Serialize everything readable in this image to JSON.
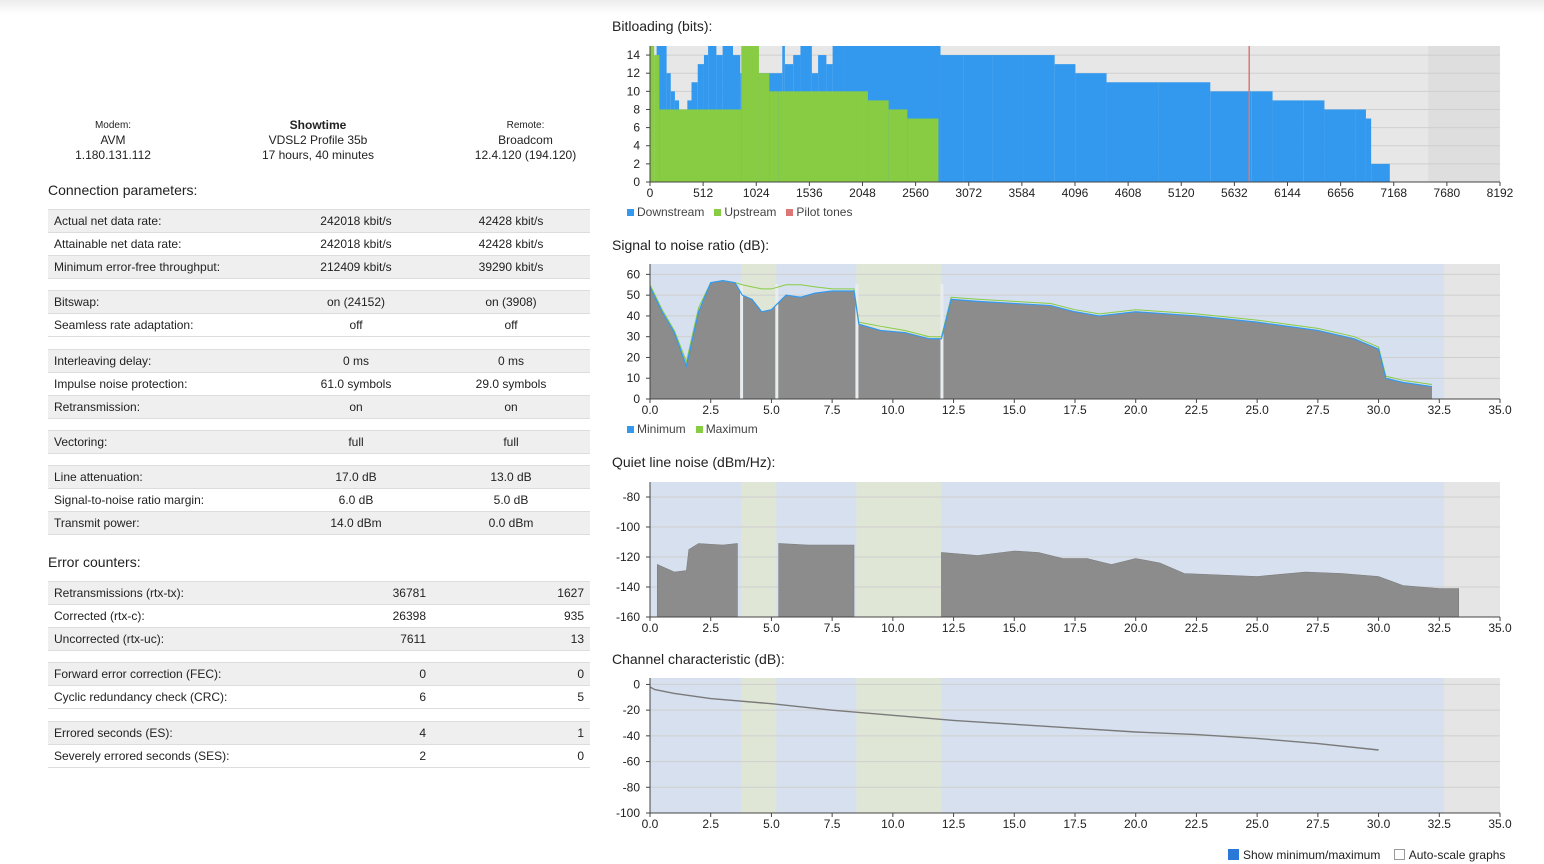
{
  "header": {
    "modem": {
      "label": "Modem:",
      "vendor": "AVM",
      "version": "1.180.131.112"
    },
    "status": {
      "state": "Showtime",
      "profile": "VDSL2 Profile 35b",
      "uptime": "17 hours, 40 minutes"
    },
    "remote": {
      "label": "Remote:",
      "vendor": "Broadcom",
      "version": "12.4.120 (194.120)"
    }
  },
  "connection": {
    "title": "Connection parameters:",
    "groups": [
      [
        {
          "label": "Actual net data rate:",
          "down": "242018 kbit/s",
          "up": "42428 kbit/s"
        },
        {
          "label": "Attainable net data rate:",
          "down": "242018 kbit/s",
          "up": "42428 kbit/s"
        },
        {
          "label": "Minimum error-free throughput:",
          "down": "212409 kbit/s",
          "up": "39290 kbit/s"
        }
      ],
      [
        {
          "label": "Bitswap:",
          "down": "on (24152)",
          "up": "on (3908)"
        },
        {
          "label": "Seamless rate adaptation:",
          "down": "off",
          "up": "off"
        }
      ],
      [
        {
          "label": "Interleaving delay:",
          "down": "0 ms",
          "up": "0 ms"
        },
        {
          "label": "Impulse noise protection:",
          "down": "61.0 symbols",
          "up": "29.0 symbols"
        },
        {
          "label": "Retransmission:",
          "down": "on",
          "up": "on"
        }
      ],
      [
        {
          "label": "Vectoring:",
          "down": "full",
          "up": "full"
        }
      ],
      [
        {
          "label": "Line attenuation:",
          "down": "17.0 dB",
          "up": "13.0 dB"
        },
        {
          "label": "Signal-to-noise ratio margin:",
          "down": "6.0 dB",
          "up": "5.0 dB"
        },
        {
          "label": "Transmit power:",
          "down": "14.0 dBm",
          "up": "0.0 dBm"
        }
      ]
    ]
  },
  "errors": {
    "title": "Error counters:",
    "groups": [
      [
        {
          "label": "Retransmissions (rtx-tx):",
          "down": "36781",
          "up": "1627"
        },
        {
          "label": "Corrected (rtx-c):",
          "down": "26398",
          "up": "935"
        },
        {
          "label": "Uncorrected (rtx-uc):",
          "down": "7611",
          "up": "13"
        }
      ],
      [
        {
          "label": "Forward error correction (FEC):",
          "down": "0",
          "up": "0"
        },
        {
          "label": "Cyclic redundancy check (CRC):",
          "down": "6",
          "up": "5"
        }
      ],
      [
        {
          "label": "Errored seconds (ES):",
          "down": "4",
          "up": "1"
        },
        {
          "label": "Severely errored seconds (SES):",
          "down": "2",
          "up": "0"
        }
      ]
    ]
  },
  "colors": {
    "downstream": "#3399ee",
    "upstream": "#88cc44",
    "pilot": "#dd7777",
    "signal": "#8c8c8c",
    "bgDown": "#d6e0ee",
    "bgUp": "#dfe6d6",
    "bgOut": "#e5e5e5"
  },
  "options": {
    "show_minmax": "Show minimum/maximum",
    "autoscale": "Auto-scale graphs"
  },
  "chart_data": [
    {
      "type": "bar",
      "title": "Bitloading (bits):",
      "xlim": [
        0,
        8192
      ],
      "ylim": [
        0,
        15
      ],
      "xticks": [
        "0",
        "512",
        "1024",
        "1536",
        "2048",
        "2560",
        "3072",
        "3584",
        "4096",
        "4608",
        "5120",
        "5632",
        "6144",
        "6656",
        "7168",
        "7680",
        "8192"
      ],
      "yticks": [
        "0",
        "2",
        "4",
        "6",
        "8",
        "10",
        "12",
        "14"
      ],
      "legend": [
        "Downstream",
        "Upstream",
        "Pilot tones"
      ],
      "series": [
        {
          "name": "Downstream",
          "points": [
            [
              64,
              15
            ],
            [
              160,
              12
            ],
            [
              200,
              10
            ],
            [
              240,
              9
            ],
            [
              280,
              8
            ],
            [
              300,
              5
            ],
            [
              330,
              4
            ],
            [
              360,
              9
            ],
            [
              400,
              11
            ],
            [
              460,
              13
            ],
            [
              520,
              14
            ],
            [
              560,
              15
            ],
            [
              640,
              14
            ],
            [
              700,
              15
            ],
            [
              800,
              14
            ],
            [
              870,
              12
            ],
            [
              1275,
              15
            ],
            [
              1300,
              13
            ],
            [
              1380,
              14
            ],
            [
              1450,
              15
            ],
            [
              1560,
              12
            ],
            [
              1620,
              14
            ],
            [
              1700,
              13
            ],
            [
              1760,
              15
            ],
            [
              1870,
              15
            ],
            [
              2800,
              14
            ],
            [
              3020,
              14
            ],
            [
              3300,
              14
            ],
            [
              3600,
              14
            ],
            [
              3900,
              13
            ],
            [
              4100,
              12
            ],
            [
              4400,
              11
            ],
            [
              4900,
              11
            ],
            [
              5400,
              10
            ],
            [
              5800,
              10
            ],
            [
              6000,
              9
            ],
            [
              6300,
              9
            ],
            [
              6500,
              8
            ],
            [
              6800,
              8
            ],
            [
              6900,
              7
            ],
            [
              6950,
              2
            ],
            [
              7130,
              2
            ]
          ]
        },
        {
          "name": "Upstream",
          "points": [
            [
              0,
              15
            ],
            [
              40,
              14
            ],
            [
              90,
              8
            ],
            [
              880,
              15
            ],
            [
              1050,
              12
            ],
            [
              1150,
              10
            ],
            [
              1240,
              10
            ],
            [
              1990,
              10
            ],
            [
              2100,
              9
            ],
            [
              2300,
              8
            ],
            [
              2480,
              7
            ],
            [
              2780,
              7
            ]
          ]
        },
        {
          "name": "Pilot tones",
          "points": [
            [
              5775,
              15
            ]
          ]
        }
      ]
    },
    {
      "type": "area",
      "title": "Signal to noise ratio (dB):",
      "xlim": [
        0,
        35
      ],
      "ylim": [
        0,
        65
      ],
      "xticks": [
        "0.0",
        "2.5",
        "5.0",
        "7.5",
        "10.0",
        "12.5",
        "15.0",
        "17.5",
        "20.0",
        "22.5",
        "25.0",
        "27.5",
        "30.0",
        "32.5",
        "35.0"
      ],
      "yticks": [
        "0",
        "10",
        "20",
        "30",
        "40",
        "50",
        "60"
      ],
      "legend": [
        "Minimum",
        "Maximum"
      ],
      "series": [
        {
          "name": "Minimum",
          "x": [
            0.0,
            0.5,
            1.0,
            1.5,
            2.0,
            2.5,
            3.0,
            3.5,
            3.8,
            4.2,
            4.6,
            5.0,
            5.6,
            6.2,
            6.8,
            7.5,
            8.4,
            8.6,
            9.5,
            10.5,
            11.5,
            12.0,
            12.4,
            13.5,
            15.0,
            16.5,
            17.5,
            18.5,
            20.0,
            22.5,
            25.0,
            27.5,
            29.0,
            30.0,
            30.3,
            31.0,
            32.2
          ],
          "y": [
            54,
            42,
            32,
            16,
            42,
            56,
            57,
            56,
            50,
            48,
            42,
            43,
            50,
            49,
            51,
            52,
            52,
            36,
            33,
            32,
            29,
            29,
            48,
            47,
            46,
            45,
            42,
            40,
            42,
            40,
            37,
            33,
            29,
            24,
            10,
            8,
            6
          ]
        },
        {
          "name": "Maximum",
          "x": [
            0.0,
            0.5,
            1.0,
            1.5,
            2.0,
            2.5,
            3.0,
            3.5,
            3.8,
            4.2,
            4.6,
            5.0,
            5.6,
            6.2,
            6.8,
            7.5,
            8.4,
            8.6,
            9.5,
            10.5,
            11.5,
            12.0,
            12.4,
            13.5,
            15.0,
            16.5,
            17.5,
            18.5,
            20.0,
            22.5,
            25.0,
            27.5,
            29.0,
            30.0,
            30.3,
            31.0,
            32.2
          ],
          "y": [
            55,
            43,
            33,
            18,
            44,
            56,
            57,
            56,
            55,
            54,
            53,
            53,
            55,
            55,
            54,
            53,
            53,
            37,
            35,
            33,
            30,
            30,
            49,
            48,
            47,
            46,
            43,
            41,
            43,
            41,
            38,
            34,
            30,
            25,
            11,
            9,
            7
          ]
        }
      ]
    },
    {
      "type": "area",
      "title": "Quiet line noise (dBm/Hz):",
      "xlim": [
        0,
        35
      ],
      "ylim": [
        -160,
        -70
      ],
      "xticks": [
        "0.0",
        "2.5",
        "5.0",
        "7.5",
        "10.0",
        "12.5",
        "15.0",
        "17.5",
        "20.0",
        "22.5",
        "25.0",
        "27.5",
        "30.0",
        "32.5",
        "35.0"
      ],
      "yticks": [
        "-80",
        "-100",
        "-120",
        "-140",
        "-160"
      ],
      "series": [
        {
          "name": "Noise",
          "x": [
            0.3,
            1.0,
            1.5,
            1.6,
            2.0,
            3.0,
            3.6,
            5.3,
            6.5,
            8.4,
            12.0,
            13.5,
            15.0,
            16.0,
            17.0,
            18.0,
            19.0,
            20.0,
            21.0,
            22.0,
            23.5,
            25.0,
            27.0,
            28.5,
            30.0,
            31.0,
            32.5,
            33.3
          ],
          "y": [
            -125,
            -130,
            -129,
            -115,
            -111,
            -112,
            -111,
            -111,
            -112,
            -112,
            -117,
            -119,
            -116,
            -117,
            -121,
            -121,
            -125,
            -121,
            -124,
            -131,
            -132,
            -133,
            -130,
            -131,
            -133,
            -139,
            -141,
            -141
          ]
        }
      ]
    },
    {
      "type": "line",
      "title": "Channel characteristic (dB):",
      "xlim": [
        0,
        35
      ],
      "ylim": [
        -100,
        5
      ],
      "xticks": [
        "0.0",
        "2.5",
        "5.0",
        "7.5",
        "10.0",
        "12.5",
        "15.0",
        "17.5",
        "20.0",
        "22.5",
        "25.0",
        "27.5",
        "30.0",
        "32.5",
        "35.0"
      ],
      "yticks": [
        "0",
        "-20",
        "-40",
        "-60",
        "-80",
        "-100"
      ],
      "series": [
        {
          "name": "Channel",
          "x": [
            0.0,
            0.2,
            1.0,
            2.5,
            5.0,
            7.5,
            10.0,
            12.5,
            15.0,
            17.5,
            20.0,
            22.5,
            25.0,
            27.5,
            30.0
          ],
          "y": [
            -2,
            -4,
            -7,
            -11,
            -15,
            -20,
            -24,
            -28,
            -31,
            -34,
            -37,
            -39,
            -42,
            -46,
            -51
          ]
        }
      ]
    }
  ]
}
